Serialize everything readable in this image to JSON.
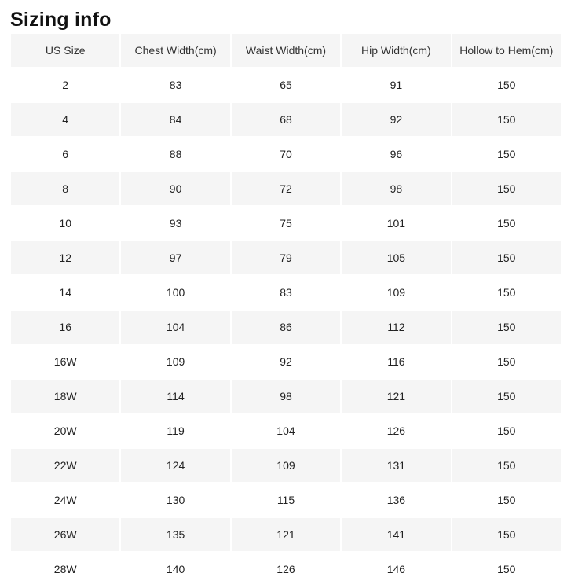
{
  "title": "Sizing info",
  "colors": {
    "header_bg": "#f5f5f5",
    "row_alt_bg": "#f5f5f5",
    "row_bg": "#ffffff",
    "title_text": "#111111",
    "header_text": "#333333",
    "cell_text": "#222222"
  },
  "table": {
    "columns": [
      "US Size",
      "Chest Width(cm)",
      "Waist Width(cm)",
      "Hip Width(cm)",
      "Hollow to Hem(cm)"
    ],
    "rows": [
      [
        "2",
        "83",
        "65",
        "91",
        "150"
      ],
      [
        "4",
        "84",
        "68",
        "92",
        "150"
      ],
      [
        "6",
        "88",
        "70",
        "96",
        "150"
      ],
      [
        "8",
        "90",
        "72",
        "98",
        "150"
      ],
      [
        "10",
        "93",
        "75",
        "101",
        "150"
      ],
      [
        "12",
        "97",
        "79",
        "105",
        "150"
      ],
      [
        "14",
        "100",
        "83",
        "109",
        "150"
      ],
      [
        "16",
        "104",
        "86",
        "112",
        "150"
      ],
      [
        "16W",
        "109",
        "92",
        "116",
        "150"
      ],
      [
        "18W",
        "114",
        "98",
        "121",
        "150"
      ],
      [
        "20W",
        "119",
        "104",
        "126",
        "150"
      ],
      [
        "22W",
        "124",
        "109",
        "131",
        "150"
      ],
      [
        "24W",
        "130",
        "115",
        "136",
        "150"
      ],
      [
        "26W",
        "135",
        "121",
        "141",
        "150"
      ],
      [
        "28W",
        "140",
        "126",
        "146",
        "150"
      ]
    ]
  }
}
